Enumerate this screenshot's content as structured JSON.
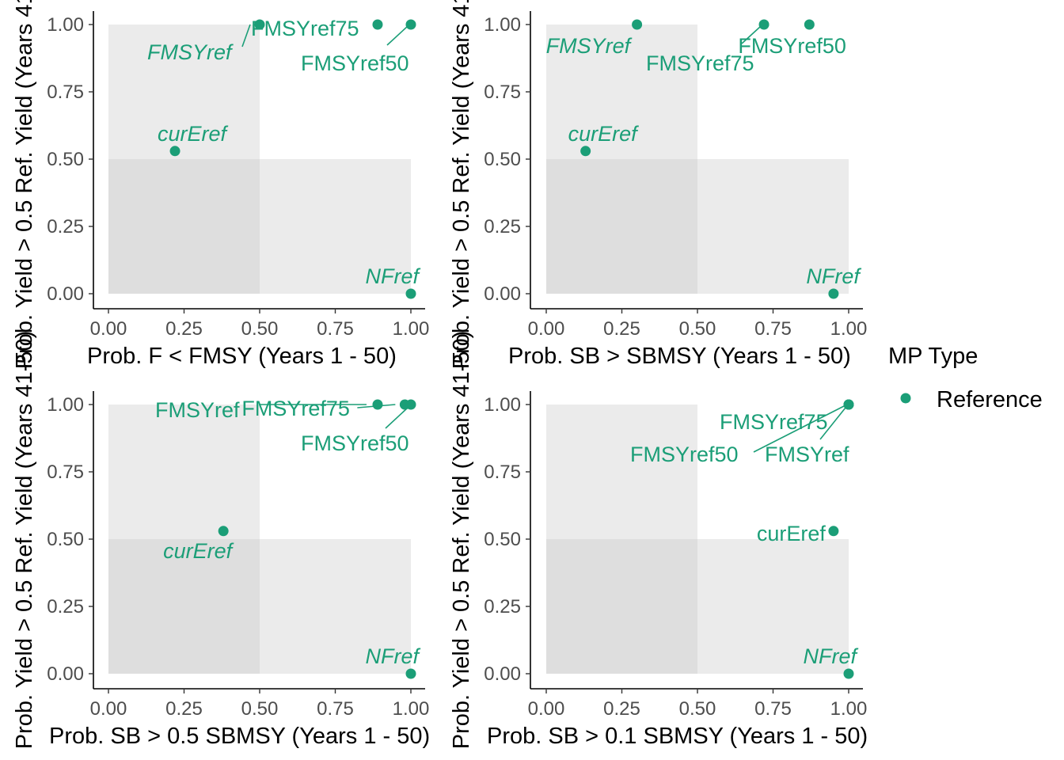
{
  "colors": {
    "reference": "#1b9e77",
    "panel_light": "#ebebeb",
    "panel_dark": "#dedede",
    "axis": "#000000",
    "tick_text": "#4d4d4d"
  },
  "legend": {
    "title": "MP Type",
    "entries": [
      {
        "label": "Reference",
        "color": "#1b9e77"
      }
    ]
  },
  "chart_data": [
    {
      "type": "scatter",
      "xlabel": "Prob. F < FMSY (Years 1 - 50)",
      "ylabel": "Prob. Yield > 0.5 Ref. Yield (Years 41-50)",
      "xlim": [
        0,
        1
      ],
      "ylim": [
        0,
        1
      ],
      "xticks": [
        "0.00",
        "0.25",
        "0.50",
        "0.75",
        "1.00"
      ],
      "yticks": [
        "0.00",
        "0.25",
        "0.50",
        "0.75",
        "1.00"
      ],
      "shaded": {
        "x_threshold": 0.5,
        "y_threshold": 0.5
      },
      "points": [
        {
          "label": "FMSYref",
          "x": 0.5,
          "y": 1.0,
          "italic": true
        },
        {
          "label": "FMSYref75",
          "x": 0.89,
          "y": 1.0,
          "italic": false
        },
        {
          "label": "FMSYref50",
          "x": 1.0,
          "y": 1.0,
          "italic": false
        },
        {
          "label": "curEref",
          "x": 0.22,
          "y": 0.53,
          "italic": true
        },
        {
          "label": "NFref",
          "x": 1.0,
          "y": 0.0,
          "italic": true
        }
      ]
    },
    {
      "type": "scatter",
      "xlabel": "Prob. SB > SBMSY (Years 1 - 50)",
      "ylabel": "Prob. Yield > 0.5 Ref. Yield (Years 41-50)",
      "xlim": [
        0,
        1
      ],
      "ylim": [
        0,
        1
      ],
      "xticks": [
        "0.00",
        "0.25",
        "0.50",
        "0.75",
        "1.00"
      ],
      "yticks": [
        "0.00",
        "0.25",
        "0.50",
        "0.75",
        "1.00"
      ],
      "shaded": {
        "x_threshold": 0.5,
        "y_threshold": 0.5
      },
      "points": [
        {
          "label": "FMSYref",
          "x": 0.3,
          "y": 1.0,
          "italic": true
        },
        {
          "label": "FMSYref75",
          "x": 0.72,
          "y": 1.0,
          "italic": false
        },
        {
          "label": "FMSYref50",
          "x": 0.87,
          "y": 1.0,
          "italic": false
        },
        {
          "label": "curEref",
          "x": 0.13,
          "y": 0.53,
          "italic": true
        },
        {
          "label": "NFref",
          "x": 0.95,
          "y": 0.0,
          "italic": true
        }
      ]
    },
    {
      "type": "scatter",
      "xlabel": "Prob. SB > 0.5 SBMSY (Years 1 - 50)",
      "ylabel": "Prob. Yield > 0.5 Ref. Yield (Years 41-50)",
      "xlim": [
        0,
        1
      ],
      "ylim": [
        0,
        1
      ],
      "xticks": [
        "0.00",
        "0.25",
        "0.50",
        "0.75",
        "1.00"
      ],
      "yticks": [
        "0.00",
        "0.25",
        "0.50",
        "0.75",
        "1.00"
      ],
      "shaded": {
        "x_threshold": 0.5,
        "y_threshold": 0.5
      },
      "points": [
        {
          "label": "FMSYref",
          "x": 0.89,
          "y": 1.0,
          "italic": false
        },
        {
          "label": "FMSYref75",
          "x": 0.98,
          "y": 1.0,
          "italic": false
        },
        {
          "label": "FMSYref50",
          "x": 1.0,
          "y": 1.0,
          "italic": false
        },
        {
          "label": "curEref",
          "x": 0.38,
          "y": 0.53,
          "italic": true
        },
        {
          "label": "NFref",
          "x": 1.0,
          "y": 0.0,
          "italic": true
        }
      ]
    },
    {
      "type": "scatter",
      "xlabel": "Prob. SB > 0.1 SBMSY (Years 1 - 50)",
      "ylabel": "Prob. Yield > 0.5 Ref. Yield (Years 41-50)",
      "xlim": [
        0,
        1
      ],
      "ylim": [
        0,
        1
      ],
      "xticks": [
        "0.00",
        "0.25",
        "0.50",
        "0.75",
        "1.00"
      ],
      "yticks": [
        "0.00",
        "0.25",
        "0.50",
        "0.75",
        "1.00"
      ],
      "shaded": {
        "x_threshold": 0.5,
        "y_threshold": 0.5
      },
      "points": [
        {
          "label": "FMSYref75",
          "x": 1.0,
          "y": 1.0,
          "italic": false
        },
        {
          "label": "FMSYref50",
          "x": 1.0,
          "y": 1.0,
          "italic": false
        },
        {
          "label": "FMSYref",
          "x": 1.0,
          "y": 1.0,
          "italic": false
        },
        {
          "label": "curEref",
          "x": 0.95,
          "y": 0.53,
          "italic": false
        },
        {
          "label": "NFref",
          "x": 1.0,
          "y": 0.0,
          "italic": true
        }
      ]
    }
  ]
}
